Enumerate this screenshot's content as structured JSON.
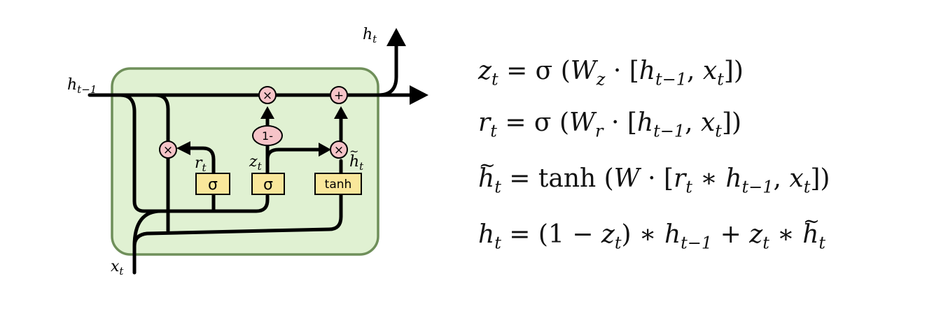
{
  "diagram": {
    "labels": {
      "h_prev": "h",
      "h_prev_sub": "t−1",
      "h_out": "h",
      "h_out_sub": "t",
      "x_in": "x",
      "x_in_sub": "t",
      "r_label": "r",
      "r_sub": "t",
      "z_label": "z",
      "z_sub": "t",
      "htilde_label": "h",
      "htilde_sub": "t"
    },
    "nodes": {
      "mul_symbol": "×",
      "add_symbol": "+",
      "one_minus": "1-",
      "sigma": "σ",
      "tanh": "tanh"
    },
    "colors": {
      "cell_fill": "#e0f1d2",
      "cell_stroke": "#6f8f5a",
      "op_fill": "#f6c4c8",
      "gate_fill": "#f9e79b",
      "line": "#000000"
    }
  },
  "equations": {
    "z": {
      "lhs": "z",
      "lhs_sub": "t",
      "rhs_pre": " = σ (",
      "W": "W",
      "W_sub": "z",
      "mid": " · [",
      "h": "h",
      "h_sub": "t−1",
      "comma": ", ",
      "x": "x",
      "x_sub": "t",
      "end": "])"
    },
    "r": {
      "lhs": "r",
      "lhs_sub": "t",
      "rhs_pre": " = σ (",
      "W": "W",
      "W_sub": "r",
      "mid": " · [",
      "h": "h",
      "h_sub": "t−1",
      "comma": ", ",
      "x": "x",
      "x_sub": "t",
      "end": "])"
    },
    "htilde": {
      "lhs": "h",
      "lhs_sub": "t",
      "rhs_pre": " = tanh (",
      "W": "W",
      "mid": " · [",
      "r": "r",
      "r_sub": "t",
      "star": " ∗ ",
      "h": "h",
      "h_sub": "t−1",
      "comma": ", ",
      "x": "x",
      "x_sub": "t",
      "end": "])"
    },
    "h": {
      "lhs": "h",
      "lhs_sub": "t",
      "pre": " = (1 − ",
      "z": "z",
      "z_sub": "t",
      "mid": ") ∗ ",
      "h": "h",
      "h_sub": "t−1",
      "plus": " + ",
      "z2": "z",
      "z2_sub": "t",
      "star": " ∗ ",
      "ht": "h",
      "ht_sub": "t"
    }
  }
}
